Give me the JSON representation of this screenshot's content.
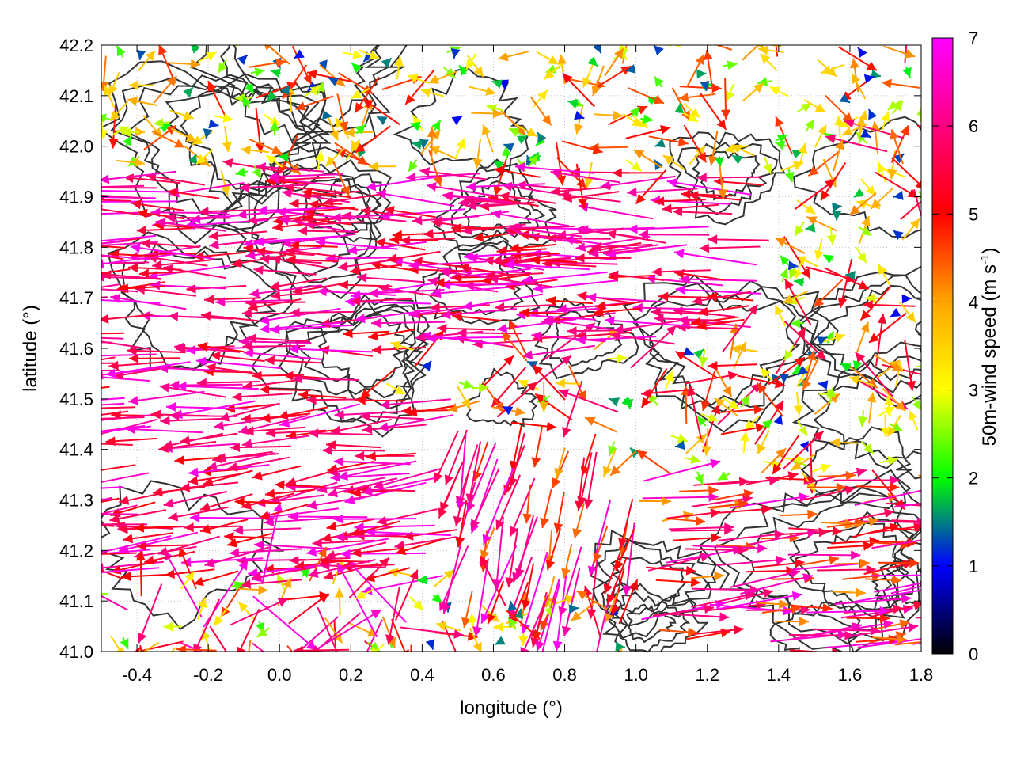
{
  "chart_data": {
    "type": "vector field",
    "xlabel": "longitude (°)",
    "ylabel": "latitude (°)",
    "xlim": [
      -0.5,
      1.8
    ],
    "ylim": [
      41.0,
      42.2
    ],
    "x_ticks": [
      "-0.4",
      "-0.2",
      "0.0",
      "0.2",
      "0.4",
      "0.6",
      "0.8",
      "1.0",
      "1.2",
      "1.4",
      "1.6",
      "1.8"
    ],
    "y_ticks": [
      "41.0",
      "41.1",
      "41.2",
      "41.3",
      "41.4",
      "41.5",
      "41.6",
      "41.7",
      "41.8",
      "41.9",
      "42.0",
      "42.1",
      "42.2"
    ],
    "colorbar": {
      "label_prefix": "50m-wind speed (m s",
      "label_sup": "-1",
      "label_suffix": ")",
      "range": [
        0,
        7
      ],
      "ticks": [
        "0",
        "1",
        "2",
        "3",
        "4",
        "5",
        "6",
        "7"
      ],
      "colors": [
        "#000000",
        "#0000ff",
        "#00ff00",
        "#ffff00",
        "#ffa500",
        "#ff0000",
        "#ff00ff"
      ]
    },
    "grid": "dotted",
    "contours": "terrain elevation (unlabeled, dark gray)",
    "regions": [
      {
        "lon": [
          -0.5,
          0.3
        ],
        "lat": [
          41.5,
          41.95
        ],
        "direction": "westward",
        "speed": [
          5,
          7
        ]
      },
      {
        "lon": [
          0.3,
          1.4
        ],
        "lat": [
          41.6,
          41.95
        ],
        "direction": "westward",
        "speed": [
          5,
          7
        ]
      },
      {
        "lon": [
          -0.5,
          0.5
        ],
        "lat": [
          41.15,
          41.5
        ],
        "direction": "west-northwestward",
        "speed": [
          5,
          7
        ]
      },
      {
        "lon": [
          -0.5,
          1.7
        ],
        "lat": [
          41.95,
          42.2
        ],
        "direction": "mixed",
        "speed": [
          1,
          5
        ]
      },
      {
        "lon": [
          0.9,
          1.8
        ],
        "lat": [
          41.35,
          41.7
        ],
        "direction": "mixed",
        "speed": [
          1,
          6
        ]
      },
      {
        "lon": [
          0.5,
          1.0
        ],
        "lat": [
          41.1,
          41.45
        ],
        "direction": "southward",
        "speed": [
          4,
          7
        ]
      },
      {
        "lon": [
          1.0,
          1.8
        ],
        "lat": [
          41.0,
          41.35
        ],
        "direction": "eastward",
        "speed": [
          4,
          7
        ]
      },
      {
        "lon": [
          -0.5,
          0.4
        ],
        "lat": [
          41.0,
          41.15
        ],
        "direction": "mixed",
        "speed": [
          2,
          7
        ]
      }
    ]
  }
}
